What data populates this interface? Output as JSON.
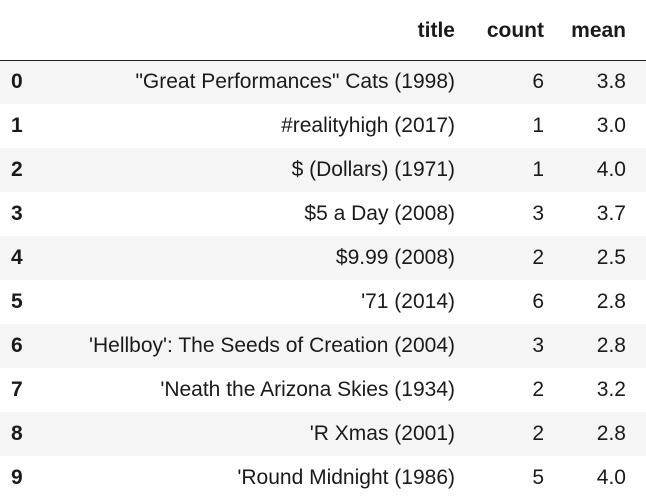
{
  "dataframe": {
    "columns": [
      "title",
      "count",
      "mean"
    ],
    "rows": [
      {
        "index": "0",
        "title": "\"Great Performances\" Cats (1998)",
        "count": "6",
        "mean": "3.8"
      },
      {
        "index": "1",
        "title": "#realityhigh (2017)",
        "count": "1",
        "mean": "3.0"
      },
      {
        "index": "2",
        "title": "$ (Dollars) (1971)",
        "count": "1",
        "mean": "4.0"
      },
      {
        "index": "3",
        "title": "$5 a Day (2008)",
        "count": "3",
        "mean": "3.7"
      },
      {
        "index": "4",
        "title": "$9.99 (2008)",
        "count": "2",
        "mean": "2.5"
      },
      {
        "index": "5",
        "title": "'71 (2014)",
        "count": "6",
        "mean": "2.8"
      },
      {
        "index": "6",
        "title": "'Hellboy': The Seeds of Creation (2004)",
        "count": "3",
        "mean": "2.8"
      },
      {
        "index": "7",
        "title": "'Neath the Arizona Skies (1934)",
        "count": "2",
        "mean": "3.2"
      },
      {
        "index": "8",
        "title": "'R Xmas (2001)",
        "count": "2",
        "mean": "2.8"
      },
      {
        "index": "9",
        "title": "'Round Midnight (1986)",
        "count": "5",
        "mean": "4.0"
      }
    ]
  }
}
